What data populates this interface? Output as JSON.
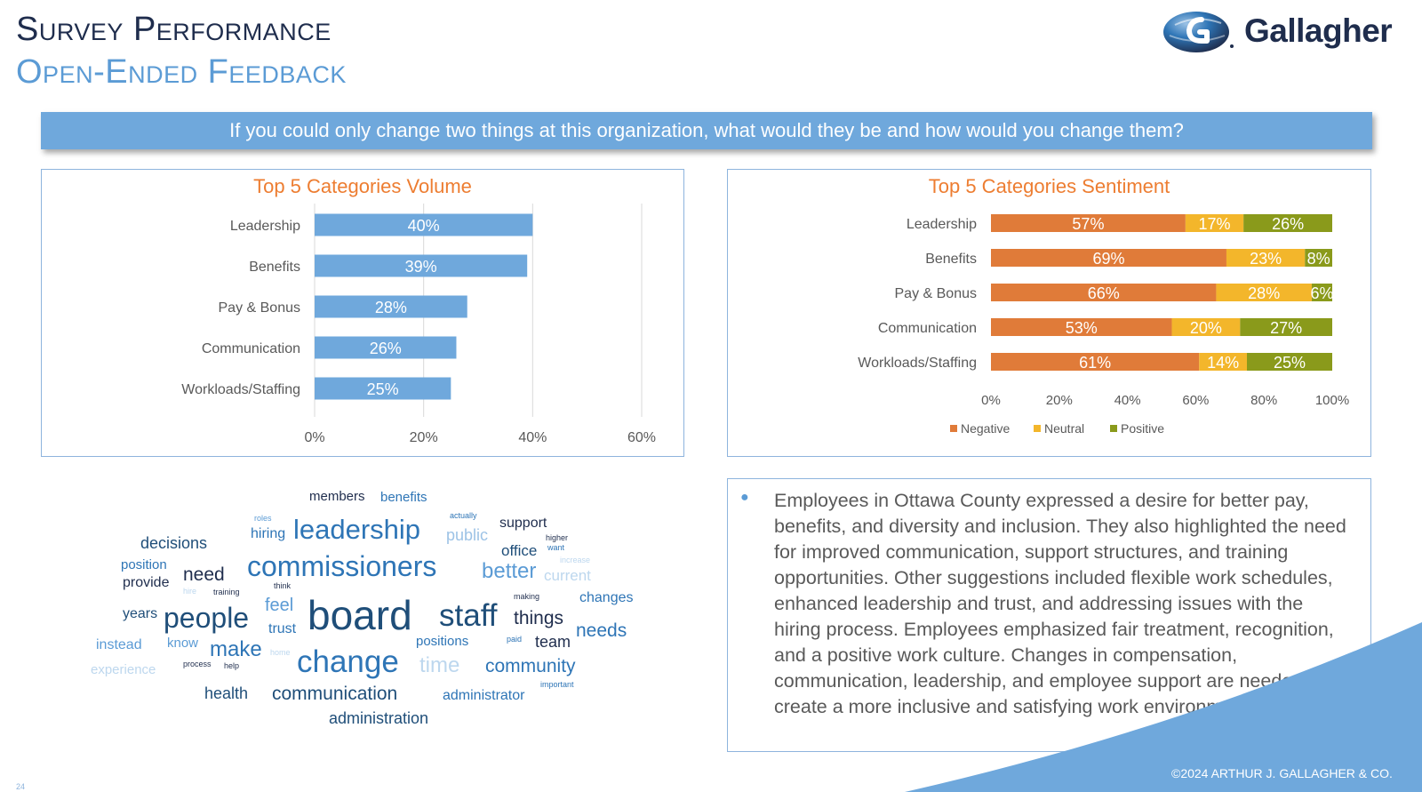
{
  "header": {
    "title": "Survey Performance",
    "subtitle": "Open-Ended Feedback",
    "logo_text": "Gallagher"
  },
  "question": "If you could only change two things at this organization, what would they be and how would you change them?",
  "colors": {
    "bar_blue": "#6fa8dc",
    "negative": "#e07b39",
    "neutral": "#f3b62b",
    "positive": "#8a9a1b",
    "title_orange": "#ed7d31",
    "navy": "#1f2d4d",
    "accent_blue": "#5b9bd5"
  },
  "chart_data": [
    {
      "type": "bar",
      "orientation": "horizontal",
      "title": "Top 5 Categories Volume",
      "categories": [
        "Leadership",
        "Benefits",
        "Pay & Bonus",
        "Communication",
        "Workloads/Staffing"
      ],
      "values": [
        40,
        39,
        28,
        26,
        25
      ],
      "value_labels": [
        "40%",
        "39%",
        "28%",
        "26%",
        "25%"
      ],
      "xlim": [
        0,
        60
      ],
      "xticks": [
        "0%",
        "20%",
        "40%",
        "60%"
      ],
      "grid": true
    },
    {
      "type": "bar",
      "orientation": "horizontal",
      "stacked": true,
      "title": "Top 5 Categories Sentiment",
      "categories": [
        "Leadership",
        "Benefits",
        "Pay & Bonus",
        "Communication",
        "Workloads/Staffing"
      ],
      "series": [
        {
          "name": "Negative",
          "values": [
            57,
            69,
            66,
            53,
            61
          ]
        },
        {
          "name": "Neutral",
          "values": [
            17,
            23,
            28,
            20,
            14
          ]
        },
        {
          "name": "Positive",
          "values": [
            26,
            8,
            6,
            27,
            25
          ]
        }
      ],
      "xlim": [
        0,
        100
      ],
      "xticks": [
        "0%",
        "20%",
        "40%",
        "60%",
        "80%",
        "100%"
      ],
      "legend": "bottom"
    }
  ],
  "word_cloud": [
    {
      "text": "members",
      "size": 15,
      "color": "#1f2d4d"
    },
    {
      "text": "benefits",
      "size": 15,
      "color": "#2e75b6"
    },
    {
      "text": "roles",
      "size": 9,
      "color": "#5b9bd5"
    },
    {
      "text": "actually",
      "size": 9,
      "color": "#2e75b6"
    },
    {
      "text": "support",
      "size": 16,
      "color": "#1f2d4d"
    },
    {
      "text": "hiring",
      "size": 16,
      "color": "#2e75b6"
    },
    {
      "text": "leadership",
      "size": 31,
      "color": "#2e75b6"
    },
    {
      "text": "public",
      "size": 18,
      "color": "#9dc3e6"
    },
    {
      "text": "higher",
      "size": 9,
      "color": "#1f2d4d"
    },
    {
      "text": "decisions",
      "size": 18,
      "color": "#1f4e79"
    },
    {
      "text": "office",
      "size": 17,
      "color": "#1f4e79"
    },
    {
      "text": "want",
      "size": 9,
      "color": "#2e75b6"
    },
    {
      "text": "increase",
      "size": 9,
      "color": "#bdd7ee"
    },
    {
      "text": "position",
      "size": 15,
      "color": "#2e75b6"
    },
    {
      "text": "commissioners",
      "size": 32,
      "color": "#2e75b6"
    },
    {
      "text": "better",
      "size": 24,
      "color": "#5b9bd5"
    },
    {
      "text": "need",
      "size": 21,
      "color": "#1f2d4d"
    },
    {
      "text": "current",
      "size": 17,
      "color": "#bdd7ee"
    },
    {
      "text": "provide",
      "size": 16,
      "color": "#1f2d4d"
    },
    {
      "text": "think",
      "size": 9,
      "color": "#1f2d4d"
    },
    {
      "text": "hire",
      "size": 9,
      "color": "#bdd7ee"
    },
    {
      "text": "training",
      "size": 9,
      "color": "#1f2d4d"
    },
    {
      "text": "making",
      "size": 9,
      "color": "#1f2d4d"
    },
    {
      "text": "changes",
      "size": 16,
      "color": "#2e75b6"
    },
    {
      "text": "feel",
      "size": 20,
      "color": "#5b9bd5"
    },
    {
      "text": "board",
      "size": 46,
      "color": "#1f4e79"
    },
    {
      "text": "staff",
      "size": 35,
      "color": "#1f4e79"
    },
    {
      "text": "years",
      "size": 16,
      "color": "#1f4e79"
    },
    {
      "text": "people",
      "size": 32,
      "color": "#1f4e79"
    },
    {
      "text": "things",
      "size": 21,
      "color": "#1f2d4d"
    },
    {
      "text": "trust",
      "size": 16,
      "color": "#2e75b6"
    },
    {
      "text": "needs",
      "size": 21,
      "color": "#2e75b6"
    },
    {
      "text": "instead",
      "size": 16,
      "color": "#5b9bd5"
    },
    {
      "text": "know",
      "size": 15,
      "color": "#5b9bd5"
    },
    {
      "text": "positions",
      "size": 15,
      "color": "#2e75b6"
    },
    {
      "text": "paid",
      "size": 9,
      "color": "#2e75b6"
    },
    {
      "text": "team",
      "size": 18,
      "color": "#1f2d4d"
    },
    {
      "text": "make",
      "size": 24,
      "color": "#2e75b6"
    },
    {
      "text": "home",
      "size": 9,
      "color": "#bdd7ee"
    },
    {
      "text": "change",
      "size": 35,
      "color": "#2e75b6"
    },
    {
      "text": "time",
      "size": 24,
      "color": "#bdd7ee"
    },
    {
      "text": "experience",
      "size": 15,
      "color": "#bdd7ee"
    },
    {
      "text": "process",
      "size": 9,
      "color": "#1f2d4d"
    },
    {
      "text": "help",
      "size": 9,
      "color": "#1f2d4d"
    },
    {
      "text": "community",
      "size": 21,
      "color": "#2e75b6"
    },
    {
      "text": "health",
      "size": 18,
      "color": "#1f4e79"
    },
    {
      "text": "communication",
      "size": 21,
      "color": "#1f4e79"
    },
    {
      "text": "important",
      "size": 9,
      "color": "#2e75b6"
    },
    {
      "text": "administrator",
      "size": 16,
      "color": "#2e75b6"
    },
    {
      "text": "administration",
      "size": 18,
      "color": "#1f4e79"
    }
  ],
  "summary": {
    "text": "Employees in Ottawa County expressed a desire for better pay, benefits, and diversity and inclusion. They also highlighted the need for improved communication, support structures, and training opportunities. Other suggestions included flexible work schedules, enhanced leadership and trust, and addressing issues with the hiring process. Employees emphasized fair treatment, recognition, and a positive work culture. Changes in compensation, communication, leadership, and employee support are needed to create a more inclusive and satisfying work environment."
  },
  "footer": {
    "copyright": "©2024 ARTHUR J. GALLAGHER & CO.",
    "page_number": "24"
  }
}
